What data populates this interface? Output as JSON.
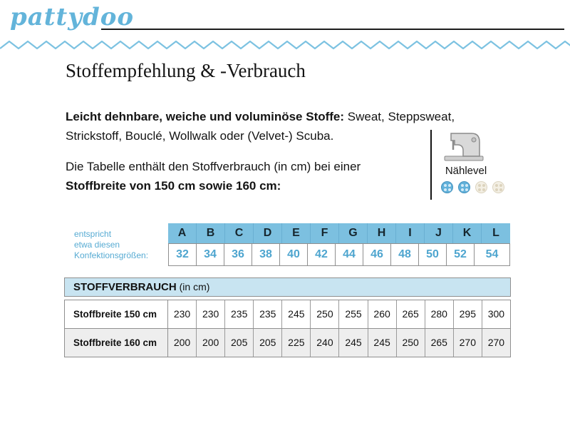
{
  "logo": {
    "text": "pattydoo"
  },
  "title": "Stoffempfehlung & -Verbrauch",
  "intro": {
    "bold": "Leicht dehnbare, weiche und voluminöse Stoffe:",
    "rest": " Sweat, Steppsweat, Strickstoff, Bouclé, Wollwalk oder (Velvet-) Scuba."
  },
  "note": {
    "line1": "Die Tabelle enthält den Stoffverbrauch (in cm) bei einer",
    "line2_bold": "Stoffbreite von 150 cm sowie 160 cm:"
  },
  "sewing_level": {
    "label": "Nählevel",
    "active_buttons": 2,
    "total_buttons": 4,
    "icon": "sewing-machine-icon"
  },
  "size_table": {
    "caption": "entspricht\netwa diesen\nKonfektionsgrößen:",
    "letters": [
      "A",
      "B",
      "C",
      "D",
      "E",
      "F",
      "G",
      "H",
      "I",
      "J",
      "K",
      "L"
    ],
    "sizes": [
      "32",
      "34",
      "36",
      "38",
      "40",
      "42",
      "44",
      "46",
      "48",
      "50",
      "52",
      "54"
    ]
  },
  "consumption_table": {
    "title_bold": "STOFFVERBRAUCH",
    "title_rest": " (in cm)",
    "rows": [
      {
        "label": "Stoffbreite 150 cm",
        "values": [
          "230",
          "230",
          "235",
          "235",
          "245",
          "250",
          "255",
          "260",
          "265",
          "280",
          "295",
          "300"
        ]
      },
      {
        "label": "Stoffbreite 160 cm",
        "values": [
          "200",
          "200",
          "205",
          "205",
          "225",
          "240",
          "245",
          "245",
          "250",
          "265",
          "270",
          "270"
        ]
      }
    ]
  },
  "colors": {
    "accent_blue": "#57ABD3",
    "size_header_blue": "#7CC0E0",
    "band_blue": "#C8E4F1",
    "row_gray": "#EEEEEE",
    "wave_blue": "#7CC2E1"
  }
}
